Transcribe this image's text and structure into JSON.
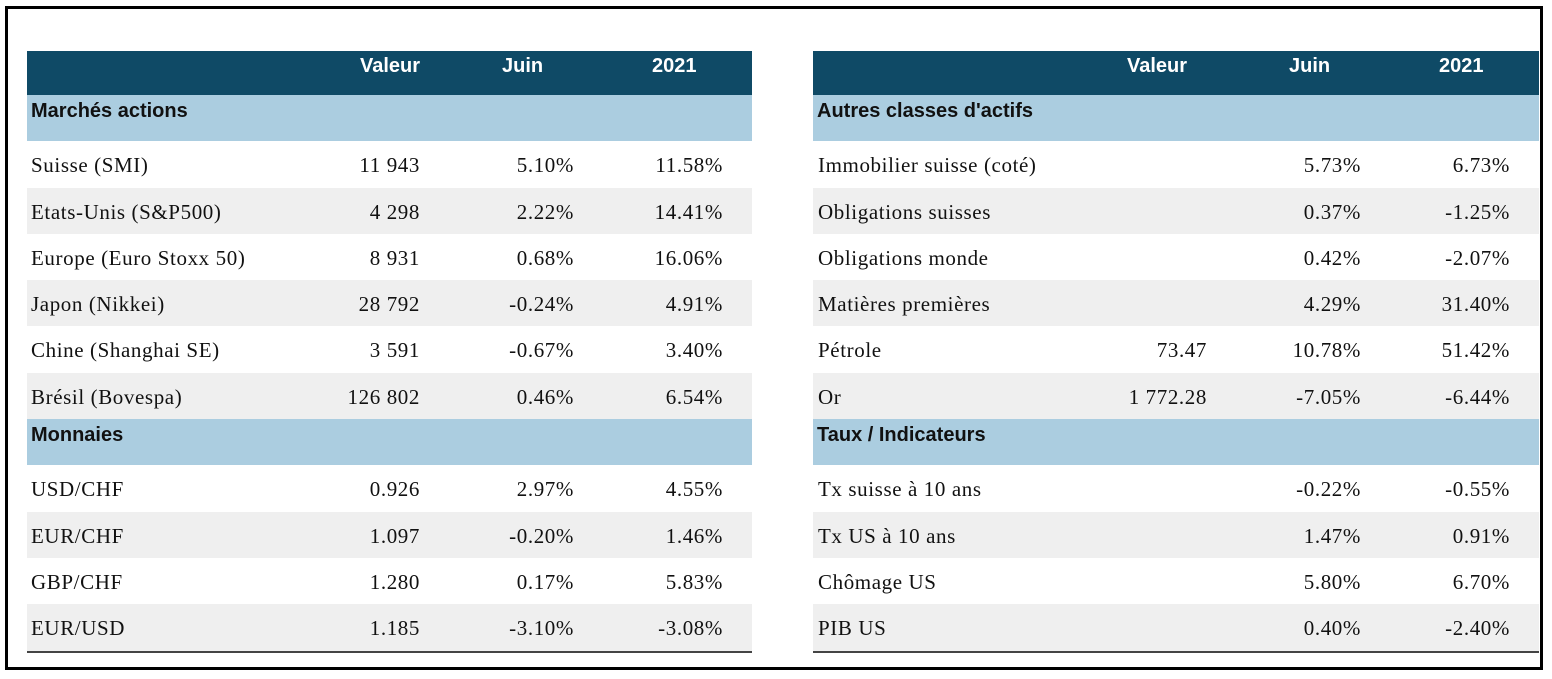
{
  "header": {
    "valeur": "Valeur",
    "juin": "Juin",
    "ytd": "2021"
  },
  "left": {
    "sections": [
      {
        "title": "Marchés actions",
        "rows": [
          {
            "name": "Suisse (SMI)",
            "valeur": "11 943",
            "juin": "5.10%",
            "ytd": "11.58%"
          },
          {
            "name": "Etats-Unis (S&P500)",
            "valeur": "4 298",
            "juin": "2.22%",
            "ytd": "14.41%"
          },
          {
            "name": "Europe (Euro Stoxx 50)",
            "valeur": "8 931",
            "juin": "0.68%",
            "ytd": "16.06%"
          },
          {
            "name": "Japon (Nikkei)",
            "valeur": "28 792",
            "juin": "-0.24%",
            "ytd": "4.91%"
          },
          {
            "name": "Chine (Shanghai SE)",
            "valeur": "3 591",
            "juin": "-0.67%",
            "ytd": "3.40%"
          },
          {
            "name": "Brésil (Bovespa)",
            "valeur": "126 802",
            "juin": "0.46%",
            "ytd": "6.54%"
          }
        ]
      },
      {
        "title": "Monnaies",
        "rows": [
          {
            "name": "USD/CHF",
            "valeur": "0.926",
            "juin": "2.97%",
            "ytd": "4.55%"
          },
          {
            "name": "EUR/CHF",
            "valeur": "1.097",
            "juin": "-0.20%",
            "ytd": "1.46%"
          },
          {
            "name": "GBP/CHF",
            "valeur": "1.280",
            "juin": "0.17%",
            "ytd": "5.83%"
          },
          {
            "name": "EUR/USD",
            "valeur": "1.185",
            "juin": "-3.10%",
            "ytd": "-3.08%"
          }
        ]
      }
    ]
  },
  "right": {
    "sections": [
      {
        "title": "Autres classes d'actifs",
        "rows": [
          {
            "name": "Immobilier suisse (coté)",
            "valeur": "",
            "juin": "5.73%",
            "ytd": "6.73%"
          },
          {
            "name": "Obligations suisses",
            "valeur": "",
            "juin": "0.37%",
            "ytd": "-1.25%"
          },
          {
            "name": "Obligations monde",
            "valeur": "",
            "juin": "0.42%",
            "ytd": "-2.07%"
          },
          {
            "name": "Matières premières",
            "valeur": "",
            "juin": "4.29%",
            "ytd": "31.40%"
          },
          {
            "name": "Pétrole",
            "valeur": "73.47",
            "juin": "10.78%",
            "ytd": "51.42%"
          },
          {
            "name": "Or",
            "valeur": "1 772.28",
            "juin": "-7.05%",
            "ytd": "-6.44%"
          }
        ]
      },
      {
        "title": "Taux / Indicateurs",
        "rows": [
          {
            "name": "Tx suisse à 10 ans",
            "valeur": "",
            "juin": "-0.22%",
            "ytd": "-0.55%"
          },
          {
            "name": "Tx US à 10 ans",
            "valeur": "",
            "juin": "1.47%",
            "ytd": "0.91%"
          },
          {
            "name": "Chômage US",
            "valeur": "",
            "juin": "5.80%",
            "ytd": "6.70%"
          },
          {
            "name": "PIB US",
            "valeur": "",
            "juin": "0.40%",
            "ytd": "-2.40%"
          }
        ]
      }
    ]
  }
}
